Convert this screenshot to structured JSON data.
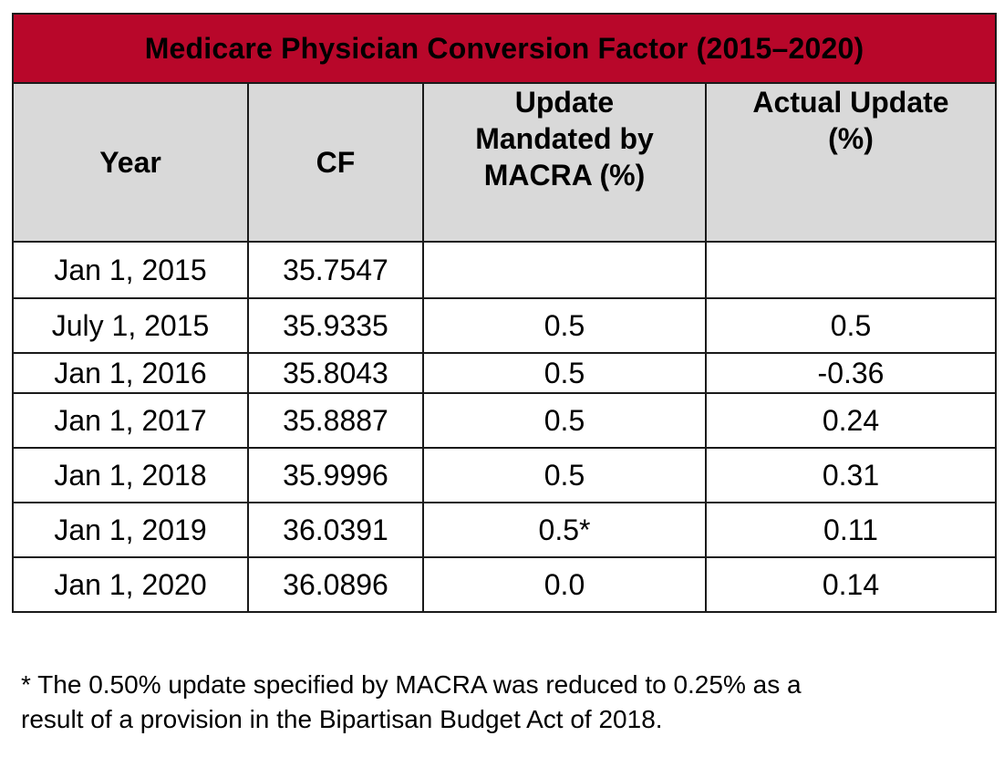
{
  "chart_data": {
    "type": "table",
    "title": "Medicare Physician Conversion Factor (2015–2020)",
    "columns": [
      "Year",
      "CF",
      "Update Mandated by MACRA (%)",
      "Actual Update (%)"
    ],
    "header_lines": {
      "year": "Year",
      "cf": "CF",
      "mandated": [
        "Update",
        "Mandated by",
        "MACRA (%)"
      ],
      "actual": [
        "Actual Update",
        "(%)"
      ]
    },
    "rows": [
      {
        "year": "Jan 1, 2015",
        "cf": "35.7547",
        "mandated": "",
        "actual": ""
      },
      {
        "year": "July 1, 2015",
        "cf": "35.9335",
        "mandated": "0.5",
        "actual": "0.5"
      },
      {
        "year": "Jan 1, 2016",
        "cf": "35.8043",
        "mandated": "0.5",
        "actual": "-0.36"
      },
      {
        "year": "Jan 1, 2017",
        "cf": "35.8887",
        "mandated": "0.5",
        "actual": "0.24"
      },
      {
        "year": "Jan 1, 2018",
        "cf": "35.9996",
        "mandated": "0.5",
        "actual": "0.31"
      },
      {
        "year": "Jan 1, 2019",
        "cf": "36.0391",
        "mandated": "0.5*",
        "actual": "0.11"
      },
      {
        "year": "Jan 1, 2020",
        "cf": "36.0896",
        "mandated": "0.0",
        "actual": "0.14"
      }
    ],
    "footnote": [
      "* The 0.50% update specified by MACRA was reduced to 0.25% as a",
      "result of a provision in the Bipartisan Budget Act of 2018."
    ]
  },
  "colors": {
    "title_bg": "#b8072a",
    "header_bg": "#d9d9d9",
    "negative_text": "#b8072a"
  }
}
